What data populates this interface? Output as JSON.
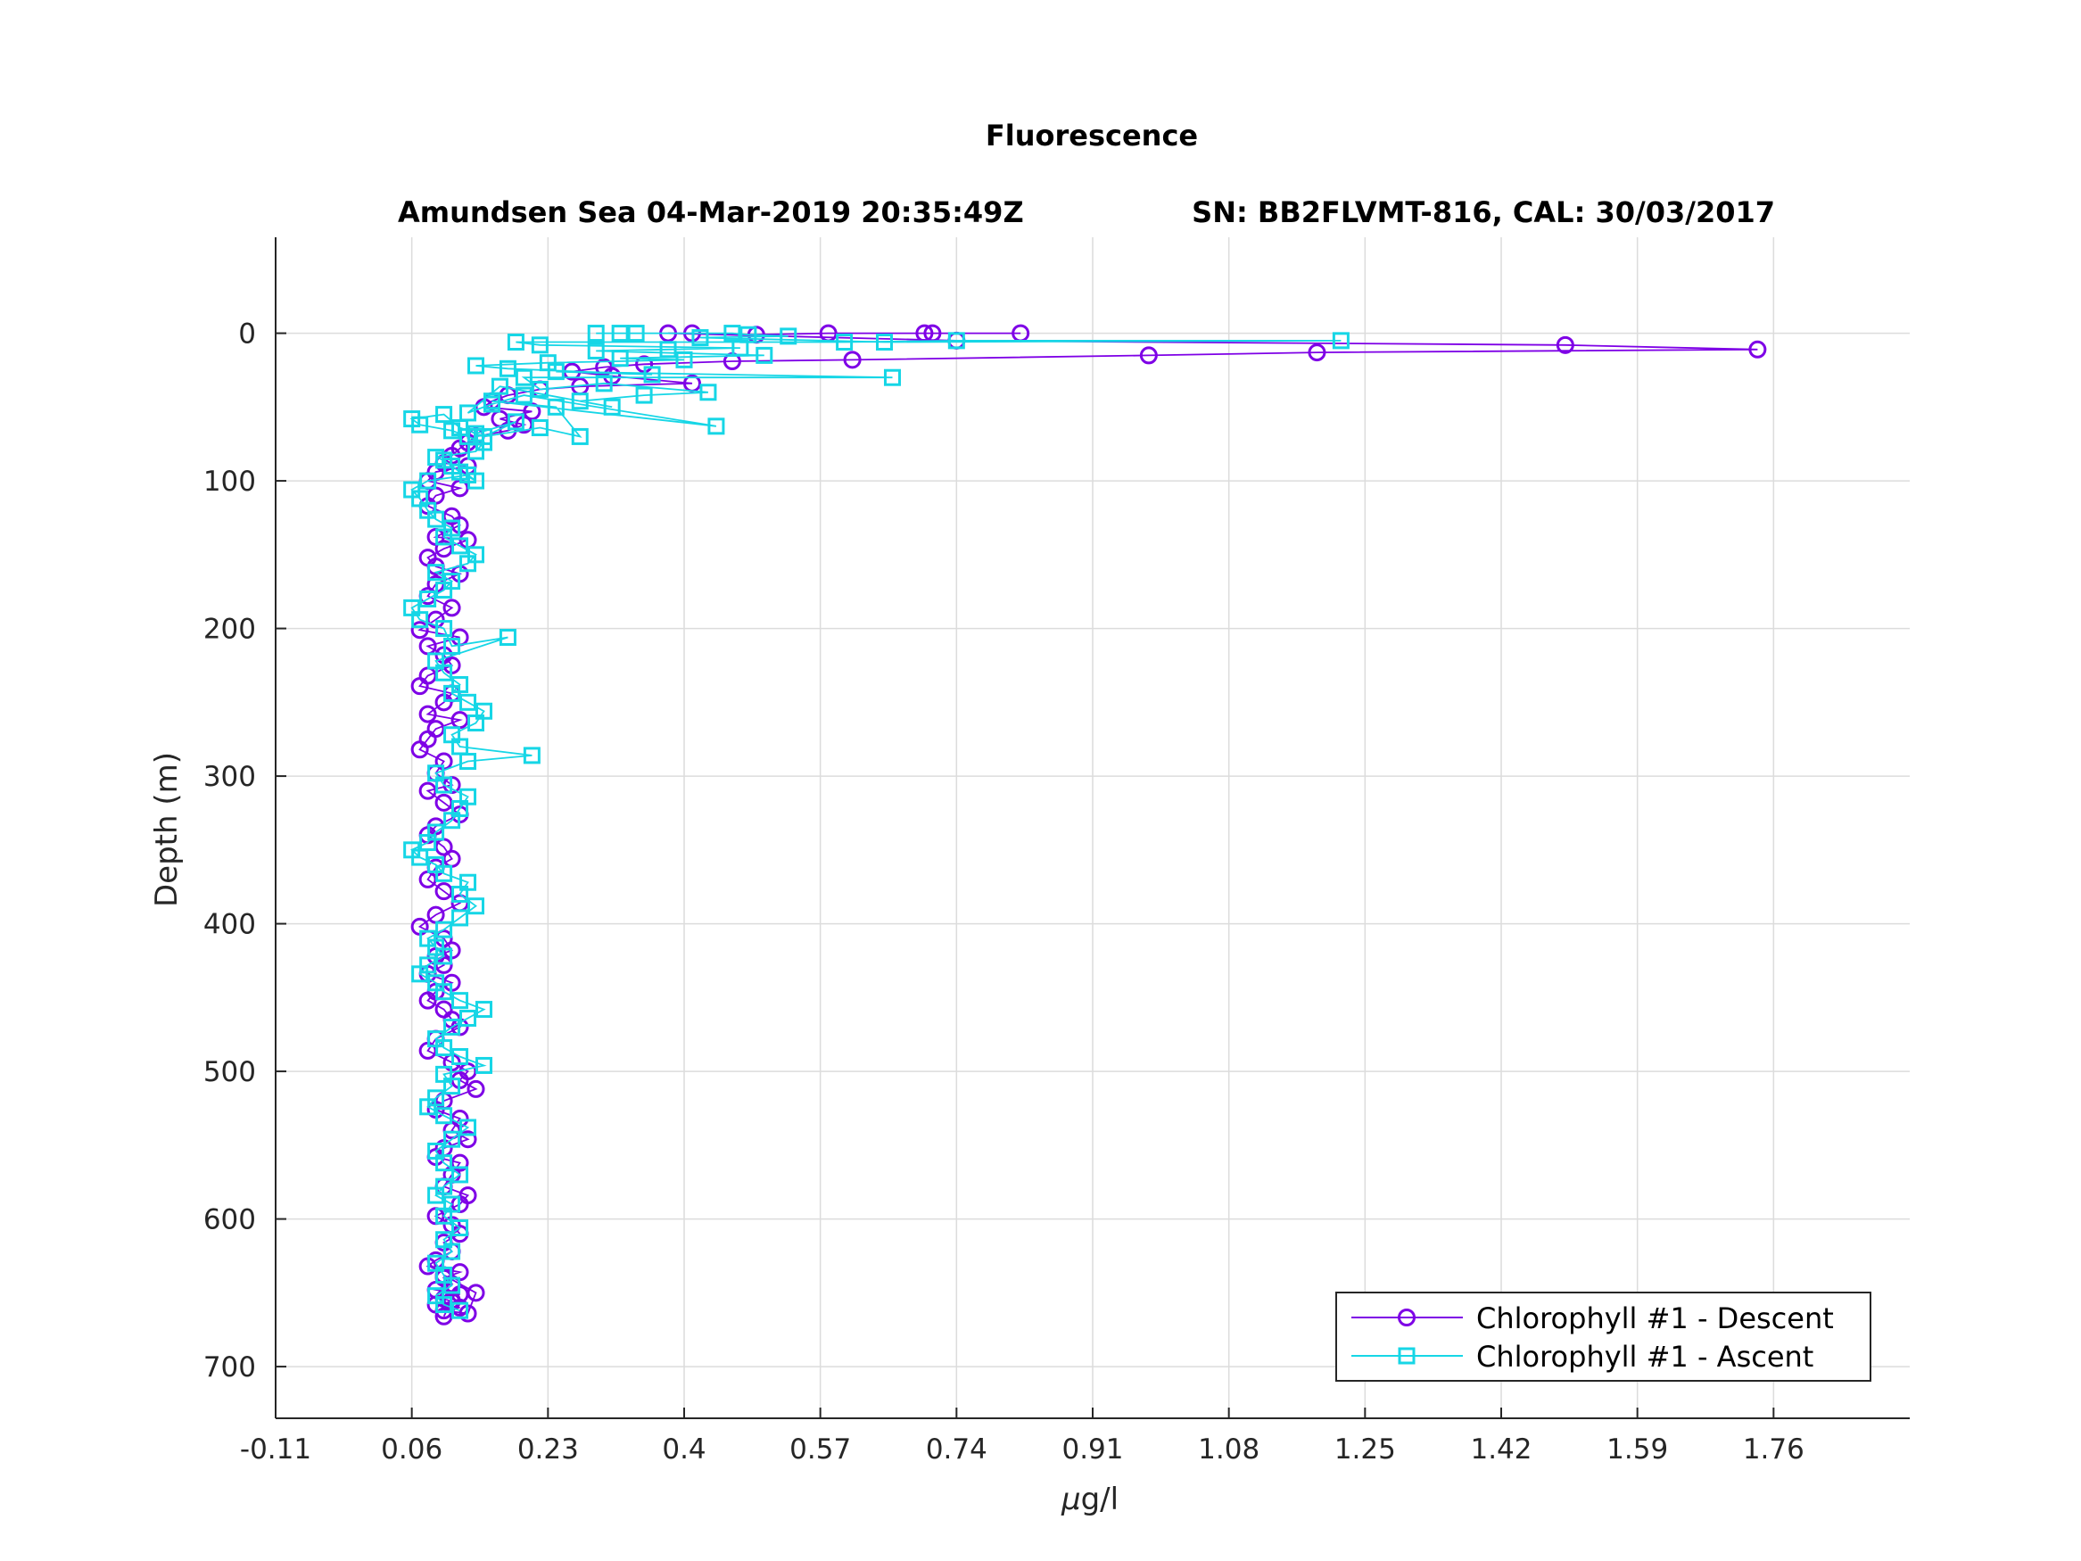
{
  "chart_data": {
    "type": "line",
    "title": "Fluorescence",
    "subtitle_left": "Amundsen Sea 04-Mar-2019 20:35:49Z",
    "subtitle_right": "SN: BB2FLVMT-816, CAL: 30/03/2017",
    "xlabel_prefix": "μ",
    "xlabel_suffix": "g/l",
    "ylabel": "Depth (m)",
    "xlim": [
      -0.11,
      1.93
    ],
    "ylim": [
      -65,
      735
    ],
    "y_reversed": true,
    "grid": true,
    "legend_position": "bottom-right",
    "xticks": [
      -0.11,
      0.06,
      0.23,
      0.4,
      0.57,
      0.74,
      0.91,
      1.08,
      1.25,
      1.42,
      1.59,
      1.76
    ],
    "xtick_labels": [
      "-0.11",
      "0.06",
      "0.23",
      "0.4",
      "0.57",
      "0.74",
      "0.91",
      "1.08",
      "1.25",
      "1.42",
      "1.59",
      "1.76"
    ],
    "yticks": [
      0,
      100,
      200,
      300,
      400,
      500,
      600,
      700
    ],
    "ytick_labels": [
      "0",
      "100",
      "200",
      "300",
      "400",
      "500",
      "600",
      "700"
    ],
    "series": [
      {
        "name": "Chlorophyll #1 - Descent",
        "color": "#7e00e6",
        "marker": "circle",
        "x": [
          0.82,
          0.71,
          0.7,
          0.58,
          0.49,
          0.41,
          0.38,
          0.74,
          1.5,
          1.74,
          1.19,
          0.98,
          0.61,
          0.46,
          0.35,
          0.3,
          0.26,
          0.31,
          0.41,
          0.27,
          0.22,
          0.18,
          0.16,
          0.15,
          0.21,
          0.17,
          0.2,
          0.18,
          0.14,
          0.13,
          0.12,
          0.11,
          0.1,
          0.13,
          0.09,
          0.08,
          0.12,
          0.09,
          0.08,
          0.11,
          0.12,
          0.09,
          0.13,
          0.1,
          0.08,
          0.09,
          0.12,
          0.09,
          0.08,
          0.11,
          0.09,
          0.07,
          0.12,
          0.08,
          0.1,
          0.11,
          0.08,
          0.07,
          0.11,
          0.1,
          0.08,
          0.12,
          0.09,
          0.08,
          0.07,
          0.1,
          0.09,
          0.11,
          0.08,
          0.1,
          0.12,
          0.09,
          0.08,
          0.1,
          0.11,
          0.09,
          0.08,
          0.1,
          0.12,
          0.09,
          0.07,
          0.1,
          0.11,
          0.09,
          0.1,
          0.08,
          0.11,
          0.09,
          0.08,
          0.1,
          0.11,
          0.12,
          0.09,
          0.08,
          0.11,
          0.13,
          0.12,
          0.14,
          0.1,
          0.09,
          0.12,
          0.11,
          0.13,
          0.1,
          0.09,
          0.12,
          0.11,
          0.1,
          0.13,
          0.12,
          0.09,
          0.11,
          0.12,
          0.1,
          0.11,
          0.09,
          0.08,
          0.12,
          0.1,
          0.11,
          0.09,
          0.12,
          0.1,
          0.11,
          0.09,
          0.12,
          0.1,
          0.13,
          0.14,
          0.1,
          0.11,
          0.1
        ],
        "y": [
          0,
          0,
          0,
          0,
          1,
          0,
          0,
          5,
          8,
          11,
          13,
          15,
          18,
          19,
          21,
          23,
          26,
          29,
          34,
          36,
          38,
          42,
          46,
          50,
          53,
          58,
          62,
          66,
          70,
          74,
          78,
          83,
          88,
          90,
          94,
          100,
          105,
          110,
          117,
          124,
          130,
          138,
          140,
          146,
          152,
          158,
          163,
          170,
          178,
          186,
          194,
          201,
          206,
          212,
          218,
          225,
          232,
          239,
          244,
          250,
          258,
          262,
          268,
          275,
          282,
          290,
          298,
          306,
          310,
          318,
          326,
          334,
          340,
          348,
          356,
          362,
          370,
          378,
          386,
          394,
          402,
          410,
          418,
          422,
          428,
          434,
          440,
          446,
          452,
          458,
          465,
          470,
          478,
          486,
          494,
          500,
          506,
          512,
          520,
          526,
          532,
          540,
          546,
          552,
          558,
          562,
          570,
          578,
          584,
          590,
          598,
          604,
          610,
          616,
          622,
          628,
          632,
          636,
          640,
          644,
          648,
          651,
          654,
          656,
          658,
          660,
          662,
          664,
          650,
          638,
          655,
          666
        ]
      },
      {
        "name": "Chlorophyll #1 - Ascent",
        "color": "#16d6e6",
        "marker": "square",
        "x": [
          0.12,
          0.1,
          0.09,
          0.11,
          0.1,
          0.09,
          0.11,
          0.1,
          0.12,
          0.1,
          0.11,
          0.09,
          0.1,
          0.12,
          0.1,
          0.09,
          0.11,
          0.13,
          0.1,
          0.08,
          0.09,
          0.11,
          0.1,
          0.15,
          0.12,
          0.1,
          0.09,
          0.11,
          0.13,
          0.15,
          0.12,
          0.1,
          0.09,
          0.07,
          0.08,
          0.1,
          0.09,
          0.08,
          0.1,
          0.12,
          0.14,
          0.12,
          0.13,
          0.1,
          0.09,
          0.07,
          0.06,
          0.08,
          0.09,
          0.11,
          0.12,
          0.13,
          0.1,
          0.09,
          0.13,
          0.21,
          0.12,
          0.11,
          0.14,
          0.15,
          0.13,
          0.11,
          0.12,
          0.1,
          0.09,
          0.18,
          0.11,
          0.1,
          0.07,
          0.06,
          0.08,
          0.1,
          0.11,
          0.09,
          0.13,
          0.14,
          0.12,
          0.1,
          0.11,
          0.09,
          0.08,
          0.07,
          0.06,
          0.08,
          0.13,
          0.14,
          0.12,
          0.11,
          0.1,
          0.09,
          0.14,
          0.15,
          0.13,
          0.11,
          0.07,
          0.06,
          0.1,
          0.12,
          0.14,
          0.19,
          0.15,
          0.22,
          0.27,
          0.24,
          0.16,
          0.44,
          0.2,
          0.16,
          0.13,
          0.17,
          0.31,
          0.27,
          0.35,
          0.43,
          0.3,
          0.22,
          0.2,
          0.66,
          0.24,
          0.36,
          0.18,
          0.14,
          0.23,
          0.4,
          0.32,
          0.5,
          0.29,
          0.38,
          0.47,
          0.22,
          0.19,
          0.6,
          0.74,
          1.22,
          0.65,
          0.42,
          0.53,
          0.48,
          0.46,
          0.34,
          0.32,
          0.29
        ],
        "y": [
          662,
          658,
          652,
          645,
          638,
          630,
          622,
          614,
          606,
          598,
          590,
          584,
          578,
          570,
          562,
          554,
          546,
          538,
          530,
          524,
          518,
          510,
          502,
          496,
          490,
          484,
          478,
          470,
          464,
          458,
          452,
          446,
          440,
          434,
          428,
          422,
          416,
          410,
          404,
          396,
          388,
          380,
          372,
          366,
          360,
          355,
          350,
          345,
          338,
          330,
          322,
          314,
          306,
          298,
          290,
          286,
          280,
          272,
          264,
          256,
          250,
          244,
          238,
          230,
          222,
          206,
          212,
          200,
          194,
          186,
          180,
          174,
          168,
          162,
          156,
          150,
          144,
          138,
          132,
          126,
          120,
          112,
          106,
          100,
          96,
          100,
          94,
          90,
          86,
          84,
          80,
          74,
          70,
          66,
          62,
          58,
          55,
          64,
          68,
          60,
          70,
          64,
          70,
          50,
          46,
          63,
          42,
          48,
          54,
          36,
          50,
          46,
          42,
          40,
          34,
          38,
          30,
          30,
          26,
          28,
          24,
          22,
          20,
          18,
          17,
          15,
          12,
          11,
          10,
          8,
          6,
          6,
          5,
          5,
          6,
          3,
          2,
          1,
          0,
          0,
          0,
          0
        ]
      }
    ]
  }
}
